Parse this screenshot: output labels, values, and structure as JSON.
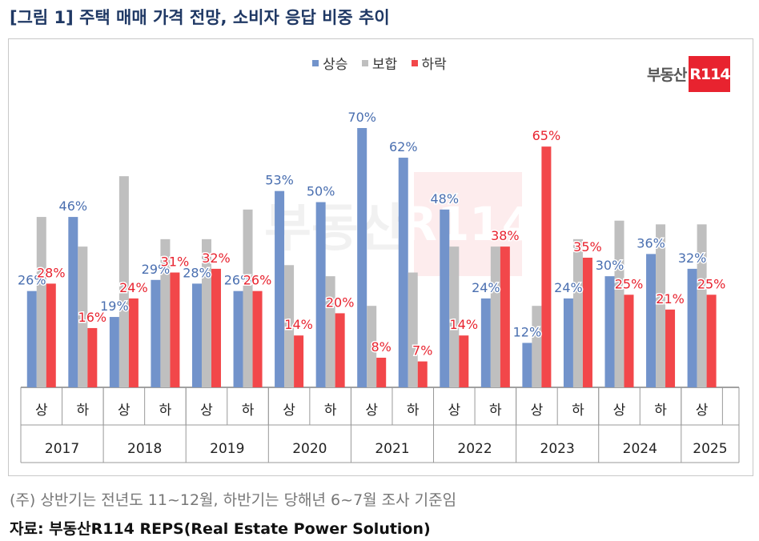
{
  "title": "[그림 1] 주택 매매 가격 전망, 소비자 응답 비중 추이",
  "logo": {
    "text": "부동산",
    "box": "R114"
  },
  "note": "(주) 상반기는 전년도 11~12월, 하반기는 당해년 6~7월 조사 기준임",
  "source": "자료: 부동산R114 REPS(Real Estate Power Solution)",
  "colors": {
    "up": "#7293cb",
    "hold": "#bfbfbf",
    "down": "#f2474a",
    "up_label": "#4a6fb0",
    "down_label": "#e8232f"
  },
  "chart_data": {
    "type": "bar",
    "categories": [
      "상",
      "하",
      "상",
      "하",
      "상",
      "하",
      "상",
      "하",
      "상",
      "하",
      "상",
      "하",
      "상",
      "하",
      "상",
      "하",
      "상"
    ],
    "years": [
      "2017",
      "2018",
      "2019",
      "2020",
      "2021",
      "2022",
      "2023",
      "2024",
      "2025"
    ],
    "series": [
      {
        "name": "상승",
        "values": [
          26,
          46,
          19,
          29,
          28,
          26,
          53,
          50,
          70,
          62,
          48,
          24,
          12,
          24,
          30,
          36,
          32
        ]
      },
      {
        "name": "보합",
        "values": [
          46,
          38,
          57,
          40,
          40,
          48,
          33,
          30,
          22,
          31,
          38,
          38,
          22,
          40,
          45,
          44,
          44
        ]
      },
      {
        "name": "하락",
        "values": [
          28,
          16,
          24,
          31,
          32,
          26,
          14,
          20,
          8,
          7,
          14,
          38,
          65,
          35,
          25,
          21,
          25
        ]
      }
    ],
    "data_labels": [
      "상승",
      "하락"
    ],
    "ylim": [
      0,
      75
    ],
    "legend_position": "top"
  }
}
